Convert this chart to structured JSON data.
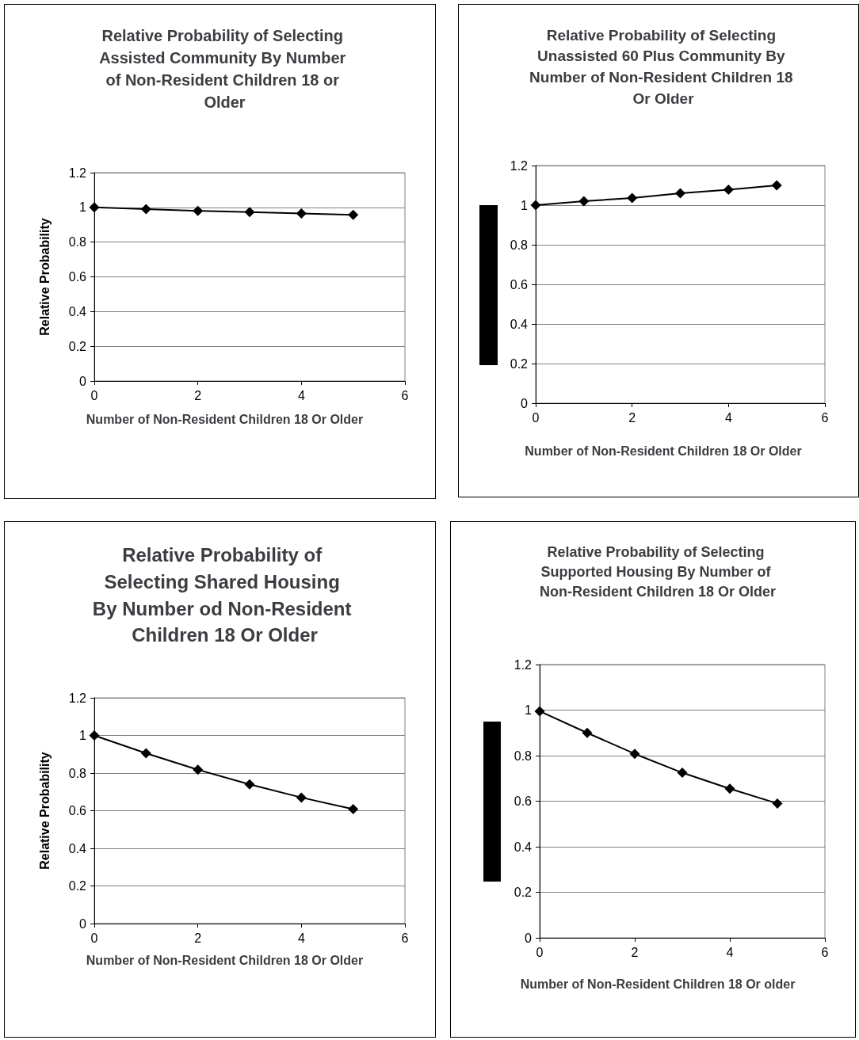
{
  "chart_data": [
    {
      "type": "line",
      "title": "Relative Probability of Selecting Assisted Community By Number of Non-Resident Children 18 or Older",
      "xlabel": "Number of Non-Resident Children 18 Or Older",
      "ylabel": "Relative Probability",
      "x": [
        0,
        1,
        2,
        3,
        4,
        5
      ],
      "series": [
        {
          "color": "#000000",
          "values": [
            1,
            0.99,
            0.98,
            0.973,
            0.965,
            0.957
          ]
        }
      ],
      "xlim": [
        0,
        6
      ],
      "xticks": [
        0,
        2,
        4,
        6
      ],
      "ylim": [
        0,
        1.2
      ],
      "yticks": [
        0,
        0.2,
        0.4,
        0.6,
        0.8,
        1,
        1.2
      ],
      "grid": "y",
      "marker": "diamond"
    },
    {
      "type": "line",
      "title": "Relative Probability of Selecting Unassisted 60 Plus Community By Number of Non-Resident Children 18 Or Older",
      "xlabel": "Number of Non-Resident Children 18 Or Older",
      "x": [
        0,
        1,
        2,
        3,
        4,
        5
      ],
      "series": [
        {
          "color": "#000000",
          "values": [
            1,
            1.02,
            1.036,
            1.06,
            1.078,
            1.1
          ]
        }
      ],
      "xlim": [
        0,
        6
      ],
      "xticks": [
        0,
        2,
        4,
        6
      ],
      "ylim": [
        0,
        1.2
      ],
      "yticks": [
        0,
        0.2,
        0.4,
        0.6,
        0.8,
        1,
        1.2
      ],
      "grid": "y",
      "marker": "diamond"
    },
    {
      "type": "line",
      "title": "Relative Probability of Selecting Shared Housing By Number od Non-Resident Children 18 Or Older",
      "xlabel": "Number of Non-Resident Children 18 Or Older",
      "ylabel": "Relative Probability",
      "x": [
        0,
        1,
        2,
        3,
        4,
        5
      ],
      "series": [
        {
          "color": "#000000",
          "values": [
            1,
            0.905,
            0.818,
            0.74,
            0.67,
            0.608
          ]
        }
      ],
      "xlim": [
        0,
        6
      ],
      "xticks": [
        0,
        2,
        4,
        6
      ],
      "ylim": [
        0,
        1.2
      ],
      "yticks": [
        0,
        0.2,
        0.4,
        0.6,
        0.8,
        1,
        1.2
      ],
      "grid": "y",
      "marker": "diamond"
    },
    {
      "type": "line",
      "title": "Relative Probability of Selecting Supported Housing By Number of Non-Resident Children 18 Or Older",
      "xlabel": "Number of Non-Resident Children 18 Or older",
      "x": [
        0,
        1,
        2,
        3,
        4,
        5
      ],
      "series": [
        {
          "color": "#000000",
          "values": [
            0.995,
            0.9,
            0.808,
            0.725,
            0.655,
            0.59
          ]
        }
      ],
      "xlim": [
        0,
        6
      ],
      "xticks": [
        0,
        2,
        4,
        6
      ],
      "ylim": [
        0,
        1.2
      ],
      "yticks": [
        0,
        0.2,
        0.4,
        0.6,
        0.8,
        1,
        1.2
      ],
      "grid": "y",
      "marker": "diamond"
    }
  ]
}
